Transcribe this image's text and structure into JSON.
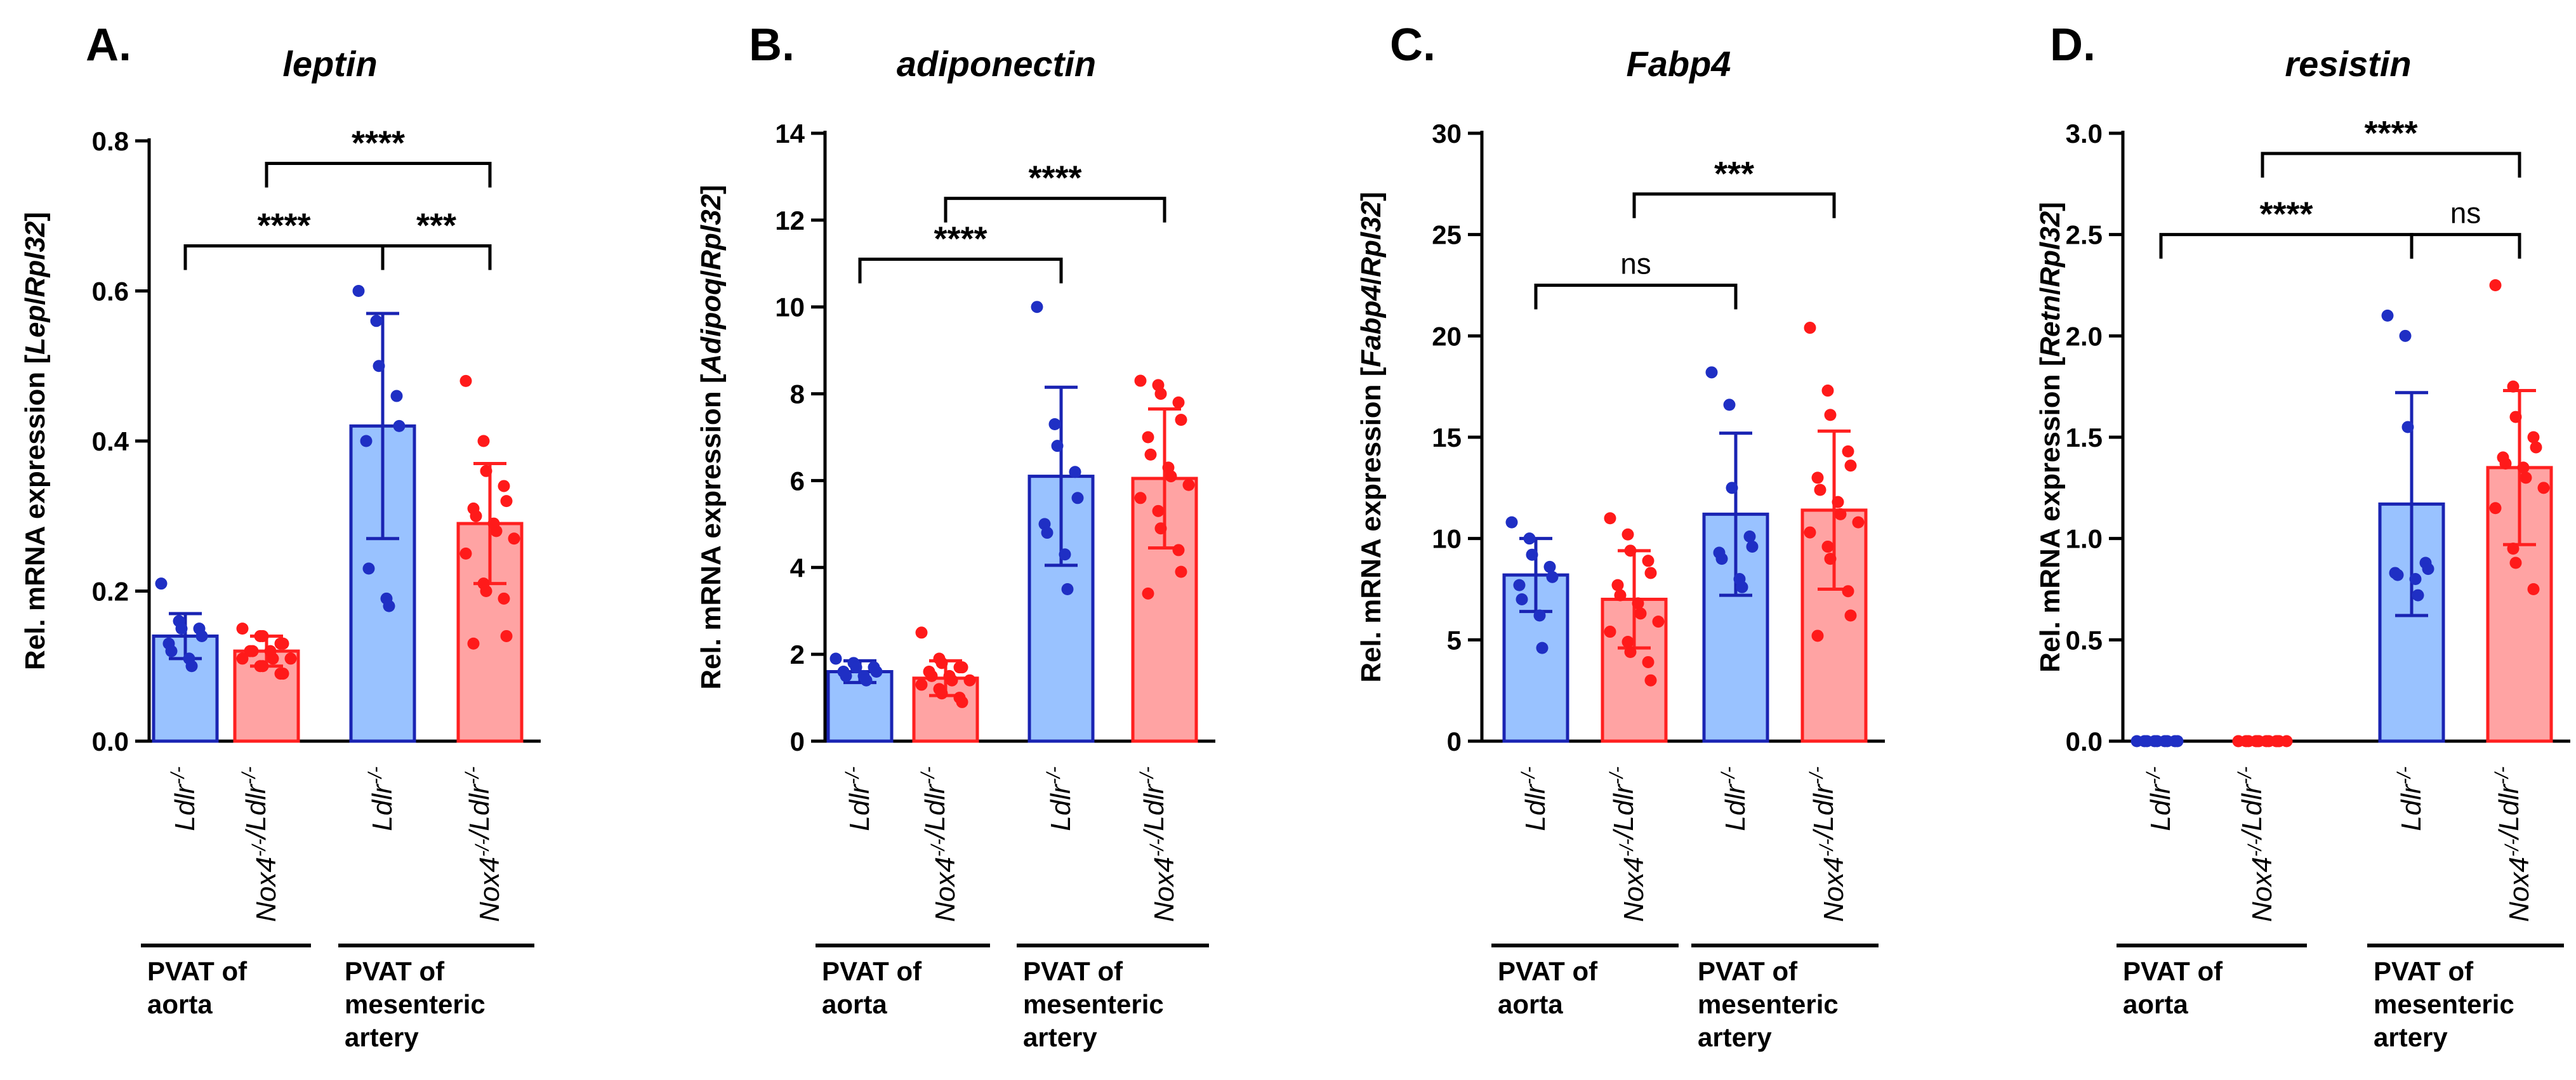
{
  "chart_data": [
    {
      "panel": "A.",
      "type": "bar",
      "title": "leptin",
      "ylabel": "Rel. mRNA expression [Lep/Rpl32]",
      "ylabel_parts": [
        {
          "text": "Rel. mRNA expression [",
          "italic": false
        },
        {
          "text": "Lep",
          "italic": true
        },
        {
          "text": "/",
          "italic": false
        },
        {
          "text": "Rpl32",
          "italic": true
        },
        {
          "text": "]",
          "italic": false
        }
      ],
      "ylim": [
        0,
        0.8
      ],
      "yticks": [
        "0.0",
        "0.2",
        "0.4",
        "0.6",
        "0.8"
      ],
      "categories": [
        "Ldlr-/-",
        "Nox4-/-/Ldlr-/-",
        "Ldlr-/-",
        "Nox4-/-/Ldlr-/-"
      ],
      "values": [
        0.14,
        0.12,
        0.42,
        0.29
      ],
      "errors": [
        0.03,
        0.02,
        0.15,
        0.08
      ],
      "points": [
        [
          0.21,
          0.16,
          0.15,
          0.15,
          0.14,
          0.13,
          0.12,
          0.11,
          0.1
        ],
        [
          0.15,
          0.14,
          0.14,
          0.13,
          0.13,
          0.12,
          0.12,
          0.12,
          0.11,
          0.11,
          0.11,
          0.1,
          0.1,
          0.09,
          0.09
        ],
        [
          0.6,
          0.56,
          0.5,
          0.46,
          0.42,
          0.4,
          0.23,
          0.19,
          0.18
        ],
        [
          0.48,
          0.4,
          0.36,
          0.34,
          0.32,
          0.31,
          0.3,
          0.29,
          0.28,
          0.27,
          0.25,
          0.21,
          0.2,
          0.19,
          0.14,
          0.13
        ]
      ],
      "significance": [
        {
          "from": 1,
          "to": 3,
          "label": "****",
          "level": 0.77
        },
        {
          "from": 0,
          "to": 2,
          "label": "****",
          "level": 0.66
        },
        {
          "from": 2,
          "to": 3,
          "label": "***",
          "level": 0.66
        }
      ],
      "groups": [
        {
          "from": 0,
          "to": 1,
          "lines": [
            "PVAT of",
            "aorta"
          ]
        },
        {
          "from": 2,
          "to": 3,
          "lines": [
            "PVAT of",
            "mesenteric",
            "artery"
          ]
        }
      ]
    },
    {
      "panel": "B.",
      "type": "bar",
      "title": "adiponectin",
      "ylabel": "Rel. mRNA expression [Adipoq/Rpl32]",
      "ylabel_parts": [
        {
          "text": "Rel. mRNA expression [",
          "italic": false
        },
        {
          "text": "Adipoq",
          "italic": true
        },
        {
          "text": "/",
          "italic": false
        },
        {
          "text": "Rpl32",
          "italic": true
        },
        {
          "text": "]",
          "italic": false
        }
      ],
      "ylim": [
        0,
        14
      ],
      "yticks": [
        "0",
        "2",
        "4",
        "6",
        "8",
        "10",
        "12",
        "14"
      ],
      "categories": [
        "Ldlr-/-",
        "Nox4-/-/Ldlr-/-",
        "Ldlr-/-",
        "Nox4-/-/Ldlr-/-"
      ],
      "values": [
        1.6,
        1.45,
        6.1,
        6.05
      ],
      "errors": [
        0.25,
        0.4,
        2.05,
        1.6
      ],
      "points": [
        [
          1.9,
          1.8,
          1.7,
          1.7,
          1.6,
          1.6,
          1.5,
          1.5,
          1.4
        ],
        [
          2.5,
          1.9,
          1.8,
          1.7,
          1.7,
          1.6,
          1.5,
          1.5,
          1.4,
          1.4,
          1.3,
          1.2,
          1.1,
          1.0,
          0.9
        ],
        [
          10.0,
          7.3,
          6.8,
          6.2,
          5.6,
          5.0,
          4.8,
          4.3,
          3.5
        ],
        [
          8.3,
          8.2,
          8.0,
          7.8,
          7.4,
          7.0,
          6.6,
          6.3,
          6.1,
          5.9,
          5.6,
          5.3,
          4.9,
          4.4,
          3.9,
          3.4
        ]
      ],
      "significance": [
        {
          "from": 1,
          "to": 3,
          "label": "****",
          "level": 12.5
        },
        {
          "from": 0,
          "to": 2,
          "label": "****",
          "level": 11.1
        }
      ],
      "groups": [
        {
          "from": 0,
          "to": 1,
          "lines": [
            "PVAT of",
            "aorta"
          ]
        },
        {
          "from": 2,
          "to": 3,
          "lines": [
            "PVAT of",
            "mesenteric",
            "artery"
          ]
        }
      ]
    },
    {
      "panel": "C.",
      "type": "bar",
      "title": "Fabp4",
      "ylabel": "Rel. mRNA expression [Fabp4/Rpl32]",
      "ylabel_parts": [
        {
          "text": "Rel. mRNA expression [",
          "italic": false
        },
        {
          "text": "Fabp4",
          "italic": true
        },
        {
          "text": "/",
          "italic": false
        },
        {
          "text": "Rpl32",
          "italic": true
        },
        {
          "text": "]",
          "italic": false
        }
      ],
      "ylim": [
        0,
        30
      ],
      "yticks": [
        "0",
        "5",
        "10",
        "15",
        "20",
        "25",
        "30"
      ],
      "categories": [
        "Ldlr-/-",
        "Nox4-/-/Ldlr-/-",
        "Ldlr-/-",
        "Nox4-/-/Ldlr-/-"
      ],
      "values": [
        8.2,
        7.0,
        11.2,
        11.4
      ],
      "errors": [
        1.8,
        2.4,
        4.0,
        3.9
      ],
      "points": [
        [
          10.8,
          10.0,
          9.2,
          8.6,
          8.1,
          7.7,
          7.0,
          6.2,
          4.6
        ],
        [
          11.0,
          10.2,
          9.4,
          8.9,
          8.3,
          7.7,
          7.2,
          6.8,
          6.3,
          5.9,
          5.4,
          4.9,
          4.4,
          3.9,
          3.0
        ],
        [
          18.2,
          16.6,
          12.5,
          10.1,
          9.6,
          9.3,
          9.0,
          8.0,
          7.6
        ],
        [
          20.4,
          17.3,
          16.1,
          14.3,
          13.6,
          13.0,
          12.4,
          11.8,
          11.2,
          10.8,
          10.3,
          9.6,
          9.0,
          7.4,
          6.2,
          5.2
        ]
      ],
      "significance": [
        {
          "from": 1,
          "to": 3,
          "label": "***",
          "level": 27.0
        },
        {
          "from": 0,
          "to": 2,
          "label": "ns",
          "level": 22.5
        }
      ],
      "groups": [
        {
          "from": 0,
          "to": 1,
          "lines": [
            "PVAT of",
            "aorta"
          ]
        },
        {
          "from": 2,
          "to": 3,
          "lines": [
            "PVAT of",
            "mesenteric",
            "artery"
          ]
        }
      ]
    },
    {
      "panel": "D.",
      "type": "bar",
      "title": "resistin",
      "ylabel": "Rel. mRNA expression [Retn/Rpl32]",
      "ylabel_parts": [
        {
          "text": "Rel. mRNA expression [",
          "italic": false
        },
        {
          "text": "Retn",
          "italic": true
        },
        {
          "text": "/",
          "italic": false
        },
        {
          "text": "Rpl32",
          "italic": true
        },
        {
          "text": "]",
          "italic": false
        }
      ],
      "ylim": [
        0,
        3.0
      ],
      "yticks": [
        "0.0",
        "0.5",
        "1.0",
        "1.5",
        "2.0",
        "2.5",
        "3.0"
      ],
      "categories": [
        "Ldlr-/-",
        "Nox4-/-/Ldlr-/-",
        "Ldlr-/-",
        "Nox4-/-/Ldlr-/-"
      ],
      "values": [
        0.0,
        0.0,
        1.17,
        1.35
      ],
      "errors": [
        0.0,
        0.0,
        0.55,
        0.38
      ],
      "points": [
        [
          0,
          0,
          0,
          0,
          0,
          0,
          0,
          0,
          0
        ],
        [
          0,
          0,
          0,
          0,
          0,
          0,
          0,
          0,
          0,
          0,
          0,
          0,
          0,
          0,
          0
        ],
        [
          2.1,
          2.0,
          1.55,
          0.88,
          0.85,
          0.83,
          0.82,
          0.8,
          0.72
        ],
        [
          2.25,
          1.75,
          1.6,
          1.5,
          1.45,
          1.4,
          1.37,
          1.35,
          1.3,
          1.25,
          1.15,
          0.95,
          0.88,
          0.75
        ]
      ],
      "significance": [
        {
          "from": 1,
          "to": 3,
          "label": "****",
          "level": 2.9
        },
        {
          "from": 0,
          "to": 2,
          "label": "****",
          "level": 2.5
        },
        {
          "from": 2,
          "to": 3,
          "label": "ns",
          "level": 2.5
        }
      ],
      "groups": [
        {
          "from": 0,
          "to": 1,
          "lines": [
            "PVAT of",
            "aorta"
          ]
        },
        {
          "from": 2,
          "to": 3,
          "lines": [
            "PVAT of",
            "mesenteric",
            "artery"
          ]
        }
      ]
    }
  ],
  "colors": {
    "blue_fill": "#99c2ff",
    "blue_edge": "#1a24b3",
    "blue_point": "#1f2fc4",
    "red_fill": "#ffa3a3",
    "red_edge": "#ff2020",
    "red_point": "#ff1a1a",
    "axis": "#000000"
  }
}
